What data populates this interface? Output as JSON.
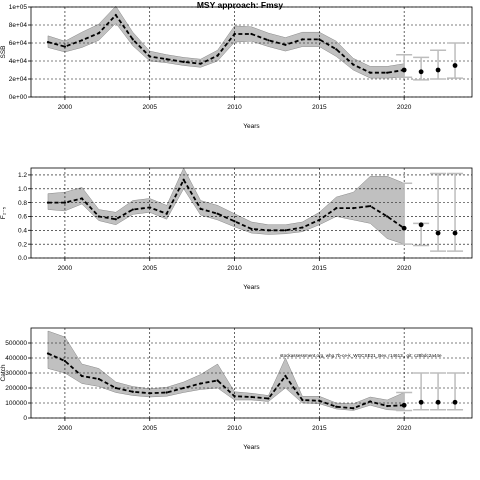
{
  "figure": {
    "title": "MSY approach: Fmsy",
    "annotation": "stockassessment.org, whg.7b-ce-k_WGCSE21_Bev, r14613,, git: c28bdc2a44e"
  },
  "chart_data": [
    {
      "type": "area",
      "title": "MSY approach: Fmsy",
      "xlabel": "Years",
      "ylabel": "SSB",
      "xlim": [
        1998,
        2024
      ],
      "ylim": [
        0,
        100000
      ],
      "grid": true,
      "x_ticks": [
        2000,
        2005,
        2010,
        2015,
        2020
      ],
      "x_tick_labels": [
        "2000",
        "2005",
        "2010",
        "2015",
        "2020"
      ],
      "y_ticks": [
        0,
        20000,
        40000,
        60000,
        80000,
        100000
      ],
      "y_tick_labels": [
        "0e+00",
        "2e+04",
        "4e+04",
        "6e+04",
        "8e+04",
        "1e+05"
      ],
      "years": [
        1999,
        2000,
        2001,
        2002,
        2003,
        2004,
        2005,
        2006,
        2007,
        2008,
        2009,
        2010,
        2011,
        2012,
        2013,
        2014,
        2015,
        2016,
        2017,
        2018,
        2019,
        2020
      ],
      "median": [
        61000,
        56000,
        63000,
        71000,
        91000,
        64000,
        45000,
        42000,
        39000,
        37000,
        46000,
        70000,
        70000,
        63000,
        58000,
        64000,
        64000,
        53000,
        36000,
        27000,
        27000,
        30000
      ],
      "lower": [
        55000,
        50000,
        55000,
        63000,
        82000,
        57000,
        40000,
        38000,
        35000,
        33000,
        40000,
        61000,
        62000,
        56000,
        51000,
        56000,
        56000,
        45000,
        30000,
        21000,
        21000,
        22000
      ],
      "upper": [
        68000,
        62000,
        72000,
        81000,
        101000,
        72000,
        51000,
        47000,
        44000,
        42000,
        52000,
        79000,
        78000,
        71000,
        66000,
        72000,
        72000,
        62000,
        43000,
        34000,
        34000,
        37000
      ],
      "prediction": {
        "years": [
          2020,
          2021,
          2022,
          2023
        ],
        "median": [
          30000,
          28000,
          30000,
          35000
        ],
        "lower": [
          22000,
          19000,
          20000,
          21000
        ],
        "upper": [
          47000,
          44000,
          52000,
          60000
        ]
      }
    },
    {
      "type": "area",
      "xlabel": "Years",
      "ylabel": "F₂₋₅",
      "xlim": [
        1998,
        2024
      ],
      "ylim": [
        0,
        1.3
      ],
      "grid": true,
      "x_ticks": [
        2000,
        2005,
        2010,
        2015,
        2020
      ],
      "x_tick_labels": [
        "2000",
        "2005",
        "2010",
        "2015",
        "2020"
      ],
      "y_ticks": [
        0,
        0.2,
        0.4,
        0.6,
        0.8,
        1.0,
        1.2
      ],
      "y_tick_labels": [
        "0.0",
        "0.2",
        "0.4",
        "0.6",
        "0.8",
        "1.0",
        "1.2"
      ],
      "years": [
        1999,
        2000,
        2001,
        2002,
        2003,
        2004,
        2005,
        2006,
        2007,
        2008,
        2009,
        2010,
        2011,
        2012,
        2013,
        2014,
        2015,
        2016,
        2017,
        2018,
        2019,
        2020
      ],
      "median": [
        0.8,
        0.8,
        0.86,
        0.6,
        0.56,
        0.7,
        0.73,
        0.64,
        1.13,
        0.71,
        0.64,
        0.53,
        0.42,
        0.4,
        0.4,
        0.44,
        0.55,
        0.72,
        0.72,
        0.75,
        0.6,
        0.43
      ],
      "lower": [
        0.7,
        0.68,
        0.78,
        0.54,
        0.48,
        0.63,
        0.66,
        0.56,
        1.0,
        0.62,
        0.55,
        0.45,
        0.36,
        0.34,
        0.35,
        0.38,
        0.48,
        0.6,
        0.55,
        0.5,
        0.28,
        0.2
      ],
      "upper": [
        0.93,
        0.95,
        1.02,
        0.7,
        0.66,
        0.83,
        0.86,
        0.76,
        1.3,
        0.83,
        0.76,
        0.64,
        0.52,
        0.48,
        0.48,
        0.52,
        0.66,
        0.88,
        0.95,
        1.18,
        1.18,
        1.08
      ],
      "prediction": {
        "years": [
          2020,
          2021,
          2022,
          2023
        ],
        "median": [
          0.43,
          0.48,
          0.36,
          0.36
        ],
        "lower": [
          0.2,
          0.18,
          0.1,
          0.1
        ],
        "upper": [
          1.08,
          0.5,
          1.22,
          1.22
        ]
      }
    },
    {
      "type": "area",
      "xlabel": "Years",
      "ylabel": "Catch",
      "xlim": [
        1998,
        2024
      ],
      "ylim": [
        0,
        600000
      ],
      "grid": true,
      "x_ticks": [
        2000,
        2005,
        2010,
        2015,
        2020
      ],
      "x_tick_labels": [
        "2000",
        "2005",
        "2010",
        "2015",
        "2020"
      ],
      "y_ticks": [
        0,
        100000,
        200000,
        300000,
        400000,
        500000
      ],
      "y_tick_labels": [
        "0",
        "100000",
        "200000",
        "300000",
        "400000",
        "500000"
      ],
      "years": [
        1999,
        2000,
        2001,
        2002,
        2003,
        2004,
        2005,
        2006,
        2007,
        2008,
        2009,
        2010,
        2011,
        2012,
        2013,
        2014,
        2015,
        2016,
        2017,
        2018,
        2019,
        2020
      ],
      "median": [
        430000,
        380000,
        280000,
        260000,
        200000,
        175000,
        165000,
        170000,
        200000,
        230000,
        250000,
        145000,
        140000,
        130000,
        280000,
        120000,
        115000,
        75000,
        65000,
        110000,
        80000,
        85000
      ],
      "lower": [
        330000,
        300000,
        230000,
        210000,
        170000,
        150000,
        140000,
        145000,
        170000,
        190000,
        200000,
        120000,
        120000,
        110000,
        200000,
        100000,
        95000,
        60000,
        50000,
        85000,
        55000,
        50000
      ],
      "upper": [
        580000,
        540000,
        360000,
        330000,
        240000,
        210000,
        195000,
        205000,
        240000,
        290000,
        360000,
        175000,
        165000,
        150000,
        400000,
        145000,
        145000,
        100000,
        95000,
        140000,
        120000,
        170000
      ],
      "prediction": {
        "years": [
          2020,
          2021,
          2022,
          2023
        ],
        "median": [
          85000,
          105000,
          105000,
          105000
        ],
        "lower": [
          50000,
          55000,
          55000,
          55000
        ],
        "upper": [
          170000,
          300000,
          300000,
          300000
        ]
      }
    }
  ]
}
